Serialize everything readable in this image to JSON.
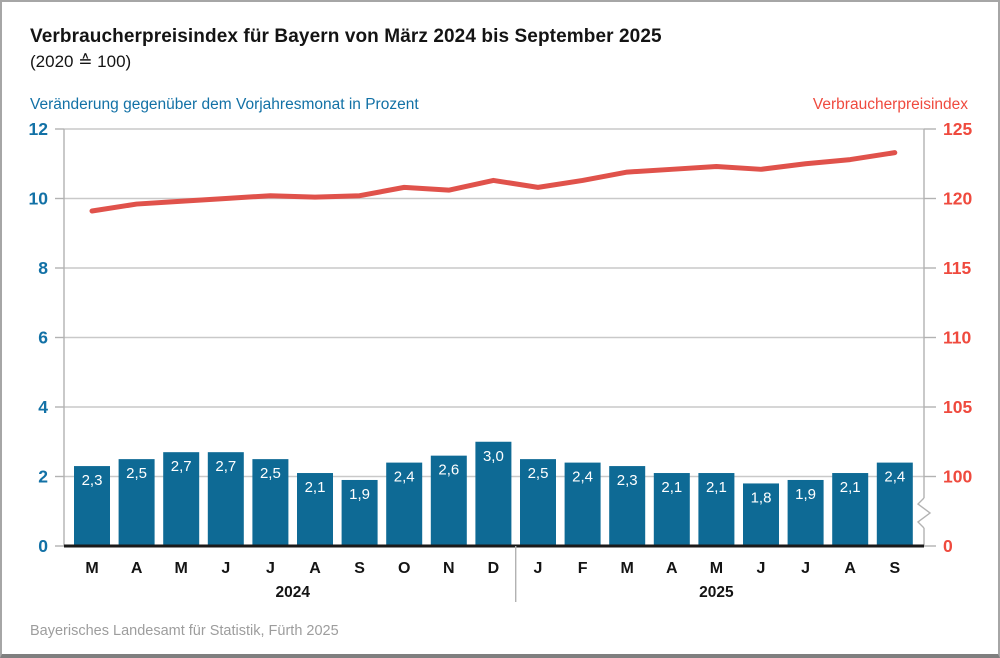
{
  "header": {
    "title": "Verbraucherpreisindex für Bayern von März 2024 bis September 2025",
    "subtitle": "(2020 ≙ 100)"
  },
  "axis_titles": {
    "left": "Veränderung gegenüber dem Vorjahresmonat in Prozent",
    "right": "Verbraucherpreisindex"
  },
  "footer": {
    "source": "Bayerisches Landesamt für Statistik, Fürth 2025"
  },
  "colors": {
    "bar": "#0e6a95",
    "line": "#e0524b",
    "left_text": "#1271a6",
    "right_text": "#ef4a3e",
    "grid": "#c9c9c9",
    "axis_line": "#b2b2b2",
    "bottom_axis": "#1a1a1a",
    "month_text": "#141414",
    "bar_label_text": "#ffffff",
    "footer_text": "#9d9d9d",
    "divider": "#b2b2b2"
  },
  "chart_data": {
    "type": "bar+line combo",
    "title": "Verbraucherpreisindex für Bayern von März 2024 bis September 2025 (2020 ≙ 100)",
    "categories": [
      "M",
      "A",
      "M",
      "J",
      "J",
      "A",
      "S",
      "O",
      "N",
      "D",
      "J",
      "F",
      "M",
      "A",
      "M",
      "J",
      "J",
      "A",
      "S"
    ],
    "year_groups": [
      {
        "label": "2024",
        "count": 10
      },
      {
        "label": "2025",
        "count": 9
      }
    ],
    "series": [
      {
        "name": "Veränderung gegenüber dem Vorjahresmonat in Prozent",
        "type": "bar",
        "axis": "left",
        "values": [
          2.3,
          2.5,
          2.7,
          2.7,
          2.5,
          2.1,
          1.9,
          2.4,
          2.6,
          3.0,
          2.5,
          2.4,
          2.3,
          2.1,
          2.1,
          1.8,
          1.9,
          2.1,
          2.4
        ],
        "labels": [
          "2,3",
          "2,5",
          "2,7",
          "2,7",
          "2,5",
          "2,1",
          "1,9",
          "2,4",
          "2,6",
          "3,0",
          "2,5",
          "2,4",
          "2,3",
          "2,1",
          "2,1",
          "1,8",
          "1,9",
          "2,1",
          "2,4"
        ]
      },
      {
        "name": "Verbraucherpreisindex",
        "type": "line",
        "axis": "right",
        "values": [
          119.1,
          119.6,
          119.8,
          120.0,
          120.2,
          120.1,
          120.2,
          120.8,
          120.6,
          121.3,
          120.8,
          121.3,
          121.9,
          122.1,
          122.3,
          122.1,
          122.5,
          122.8,
          123.3
        ]
      }
    ],
    "left_axis": {
      "label": "Veränderung gegenüber dem Vorjahresmonat in Prozent",
      "ticks": [
        12,
        10,
        8,
        6,
        4,
        2,
        0
      ],
      "range": [
        0,
        12
      ],
      "grid": true
    },
    "right_axis": {
      "label": "Verbraucherpreisindex",
      "ticks": [
        125,
        120,
        115,
        110,
        105,
        100,
        0
      ],
      "axis_break_between": [
        0,
        100
      ],
      "mapping": "right_value = 100 + (left_value - 2) * 2.5"
    }
  }
}
